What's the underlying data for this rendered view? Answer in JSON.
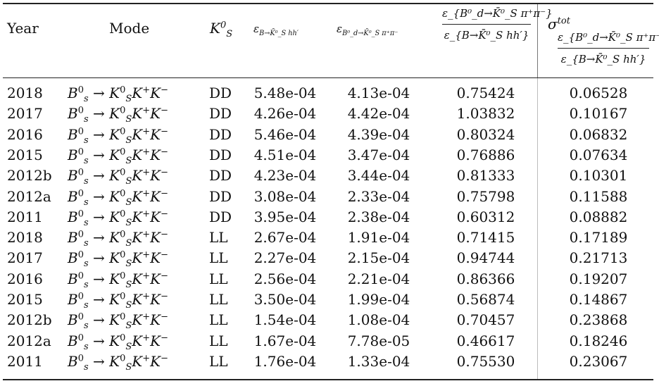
{
  "header": {
    "year": "Year",
    "mode": "Mode",
    "ks_symbol": "K",
    "ks_sup": "0",
    "ks_sub": "S",
    "eff1_label": "ε",
    "eff1_sub": "B→K̄⁰_S hh′",
    "eff2_label": "ε",
    "eff2_sub": "B⁰_d→K̄⁰_S π⁺π⁻",
    "ratio_num": "ε_{B⁰_d→K̄⁰_S π⁺π⁻}",
    "ratio_den": "ε_{B→K̄⁰_S hh′}",
    "sigma_symbol": "σ",
    "sigma_sup": "tot",
    "sigma_num": "ε_{B⁰_d→K̄⁰_S π⁺π⁻}",
    "sigma_den": "ε_{B→K̄⁰_S hh′}"
  },
  "mode_text": {
    "b": "B",
    "b_sup": "0",
    "b_sub": "s",
    "arrow": "→",
    "k": "K",
    "k_sup": "0",
    "k_sub": "S",
    "kp": "K",
    "kp_sup": "+",
    "km": "K",
    "km_sup": "−"
  },
  "rows": [
    {
      "year": "2018",
      "ks": "DD",
      "eff1": "5.48e-04",
      "eff2": "4.13e-04",
      "ratio": "0.75424",
      "sigma": "0.06528"
    },
    {
      "year": "2017",
      "ks": "DD",
      "eff1": "4.26e-04",
      "eff2": "4.42e-04",
      "ratio": "1.03832",
      "sigma": "0.10167"
    },
    {
      "year": "2016",
      "ks": "DD",
      "eff1": "5.46e-04",
      "eff2": "4.39e-04",
      "ratio": "0.80324",
      "sigma": "0.06832"
    },
    {
      "year": "2015",
      "ks": "DD",
      "eff1": "4.51e-04",
      "eff2": "3.47e-04",
      "ratio": "0.76886",
      "sigma": "0.07634"
    },
    {
      "year": "2012b",
      "ks": "DD",
      "eff1": "4.23e-04",
      "eff2": "3.44e-04",
      "ratio": "0.81333",
      "sigma": "0.10301"
    },
    {
      "year": "2012a",
      "ks": "DD",
      "eff1": "3.08e-04",
      "eff2": "2.33e-04",
      "ratio": "0.75798",
      "sigma": "0.11588"
    },
    {
      "year": "2011",
      "ks": "DD",
      "eff1": "3.95e-04",
      "eff2": "2.38e-04",
      "ratio": "0.60312",
      "sigma": "0.08882"
    },
    {
      "year": "2018",
      "ks": "LL",
      "eff1": "2.67e-04",
      "eff2": "1.91e-04",
      "ratio": "0.71415",
      "sigma": "0.17189"
    },
    {
      "year": "2017",
      "ks": "LL",
      "eff1": "2.27e-04",
      "eff2": "2.15e-04",
      "ratio": "0.94744",
      "sigma": "0.21713"
    },
    {
      "year": "2016",
      "ks": "LL",
      "eff1": "2.56e-04",
      "eff2": "2.21e-04",
      "ratio": "0.86366",
      "sigma": "0.19207"
    },
    {
      "year": "2015",
      "ks": "LL",
      "eff1": "3.50e-04",
      "eff2": "1.99e-04",
      "ratio": "0.56874",
      "sigma": "0.14867"
    },
    {
      "year": "2012b",
      "ks": "LL",
      "eff1": "1.54e-04",
      "eff2": "1.08e-04",
      "ratio": "0.70457",
      "sigma": "0.23868"
    },
    {
      "year": "2012a",
      "ks": "LL",
      "eff1": "1.67e-04",
      "eff2": "7.78e-05",
      "ratio": "0.46617",
      "sigma": "0.18246"
    },
    {
      "year": "2011",
      "ks": "LL",
      "eff1": "1.76e-04",
      "eff2": "1.33e-04",
      "ratio": "0.75530",
      "sigma": "0.23067"
    }
  ]
}
